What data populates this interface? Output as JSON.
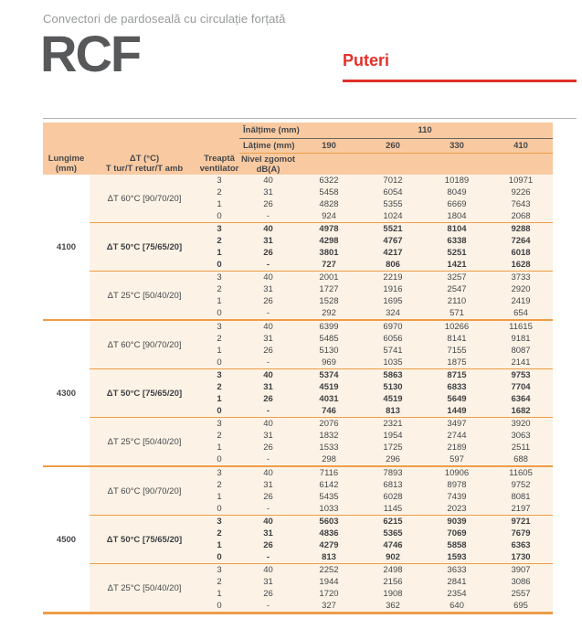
{
  "header": {
    "subtitle": "Convectori de pardoseală cu circulație forțată",
    "product": "RCF",
    "section_title": "Puteri",
    "accent_red": "#E2312A"
  },
  "colors": {
    "header_peach": "#F9CAA1",
    "body_cream": "#FCF3E6",
    "line_orange": "#EE9D47",
    "text_gray": "#45474A"
  },
  "table": {
    "inaltime_label": "Înălțime (mm)",
    "inaltime_value": "110",
    "latime_label": "Lățime (mm)",
    "widths": [
      "190",
      "260",
      "330",
      "410"
    ],
    "col_headers": [
      {
        "line1": "Lungime",
        "line2": "(mm)"
      },
      {
        "line1": "ΔT (°C)",
        "line2": "T tur/T retur/T amb"
      },
      {
        "line1": "Treaptă",
        "line2": "ventilator"
      },
      {
        "line1": "Nivel zgomot",
        "line2": "dB(A)"
      }
    ],
    "groups": [
      {
        "lungime": "4100",
        "blocks": [
          {
            "dt": "ΔT 60°C [90/70/20]",
            "bold": false,
            "rows": [
              {
                "treapta": "3",
                "zgomot": "40",
                "values": [
                  6322,
                  7012,
                  10189,
                  10971
                ]
              },
              {
                "treapta": "2",
                "zgomot": "31",
                "values": [
                  5458,
                  6054,
                  8049,
                  9226
                ]
              },
              {
                "treapta": "1",
                "zgomot": "26",
                "values": [
                  4828,
                  5355,
                  6669,
                  7643
                ]
              },
              {
                "treapta": "0",
                "zgomot": "-",
                "values": [
                  924,
                  1024,
                  1804,
                  2068
                ]
              }
            ]
          },
          {
            "dt": "ΔT 50°C [75/65/20]",
            "bold": true,
            "rows": [
              {
                "treapta": "3",
                "zgomot": "40",
                "values": [
                  4978,
                  5521,
                  8104,
                  9288
                ]
              },
              {
                "treapta": "2",
                "zgomot": "31",
                "values": [
                  4298,
                  4767,
                  6338,
                  7264
                ]
              },
              {
                "treapta": "1",
                "zgomot": "26",
                "values": [
                  3801,
                  4217,
                  5251,
                  6018
                ]
              },
              {
                "treapta": "0",
                "zgomot": "-",
                "values": [
                  727,
                  806,
                  1421,
                  1628
                ]
              }
            ]
          },
          {
            "dt": "ΔT 25°C [50/40/20]",
            "bold": false,
            "rows": [
              {
                "treapta": "3",
                "zgomot": "40",
                "values": [
                  2001,
                  2219,
                  3257,
                  3733
                ]
              },
              {
                "treapta": "2",
                "zgomot": "31",
                "values": [
                  1727,
                  1916,
                  2547,
                  2920
                ]
              },
              {
                "treapta": "1",
                "zgomot": "26",
                "values": [
                  1528,
                  1695,
                  2110,
                  2419
                ]
              },
              {
                "treapta": "0",
                "zgomot": "-",
                "values": [
                  292,
                  324,
                  571,
                  654
                ]
              }
            ]
          }
        ]
      },
      {
        "lungime": "4300",
        "blocks": [
          {
            "dt": "ΔT 60°C [90/70/20]",
            "bold": false,
            "rows": [
              {
                "treapta": "3",
                "zgomot": "40",
                "values": [
                  6399,
                  6970,
                  10266,
                  11615
                ]
              },
              {
                "treapta": "2",
                "zgomot": "31",
                "values": [
                  5485,
                  6056,
                  8141,
                  9181
                ]
              },
              {
                "treapta": "1",
                "zgomot": "26",
                "values": [
                  5130,
                  5741,
                  7155,
                  8087
                ]
              },
              {
                "treapta": "0",
                "zgomot": "-",
                "values": [
                  969,
                  1035,
                  1875,
                  2141
                ]
              }
            ]
          },
          {
            "dt": "ΔT 50°C [75/65/20]",
            "bold": true,
            "rows": [
              {
                "treapta": "3",
                "zgomot": "40",
                "values": [
                  5374,
                  5863,
                  8715,
                  9753
                ]
              },
              {
                "treapta": "2",
                "zgomot": "31",
                "values": [
                  4519,
                  5130,
                  6833,
                  7704
                ]
              },
              {
                "treapta": "1",
                "zgomot": "26",
                "values": [
                  4031,
                  4519,
                  5649,
                  6364
                ]
              },
              {
                "treapta": "0",
                "zgomot": "-",
                "values": [
                  746,
                  813,
                  1449,
                  1682
                ]
              }
            ]
          },
          {
            "dt": "ΔT 25°C [50/40/20]",
            "bold": false,
            "rows": [
              {
                "treapta": "3",
                "zgomot": "40",
                "values": [
                  2076,
                  2321,
                  3497,
                  3920
                ]
              },
              {
                "treapta": "2",
                "zgomot": "31",
                "values": [
                  1832,
                  1954,
                  2744,
                  3063
                ]
              },
              {
                "treapta": "1",
                "zgomot": "26",
                "values": [
                  1533,
                  1725,
                  2189,
                  2511
                ]
              },
              {
                "treapta": "0",
                "zgomot": "-",
                "values": [
                  298,
                  296,
                  597,
                  688
                ]
              }
            ]
          }
        ]
      },
      {
        "lungime": "4500",
        "blocks": [
          {
            "dt": "ΔT 60°C [90/70/20]",
            "bold": false,
            "rows": [
              {
                "treapta": "3",
                "zgomot": "40",
                "values": [
                  7116,
                  7893,
                  10906,
                  11605
                ]
              },
              {
                "treapta": "2",
                "zgomot": "31",
                "values": [
                  6142,
                  6813,
                  8978,
                  9752
                ]
              },
              {
                "treapta": "1",
                "zgomot": "26",
                "values": [
                  5435,
                  6028,
                  7439,
                  8081
                ]
              },
              {
                "treapta": "0",
                "zgomot": "-",
                "values": [
                  1033,
                  1145,
                  2023,
                  2197
                ]
              }
            ]
          },
          {
            "dt": "ΔT 50°C [75/65/20]",
            "bold": true,
            "rows": [
              {
                "treapta": "3",
                "zgomot": "40",
                "values": [
                  5603,
                  6215,
                  9039,
                  9721
                ]
              },
              {
                "treapta": "2",
                "zgomot": "31",
                "values": [
                  4836,
                  5365,
                  7069,
                  7679
                ]
              },
              {
                "treapta": "1",
                "zgomot": "26",
                "values": [
                  4279,
                  4746,
                  5858,
                  6363
                ]
              },
              {
                "treapta": "0",
                "zgomot": "-",
                "values": [
                  813,
                  902,
                  1593,
                  1730
                ]
              }
            ]
          },
          {
            "dt": "ΔT 25°C [50/40/20]",
            "bold": false,
            "rows": [
              {
                "treapta": "3",
                "zgomot": "40",
                "values": [
                  2252,
                  2498,
                  3633,
                  3907
                ]
              },
              {
                "treapta": "2",
                "zgomot": "31",
                "values": [
                  1944,
                  2156,
                  2841,
                  3086
                ]
              },
              {
                "treapta": "1",
                "zgomot": "26",
                "values": [
                  1720,
                  1908,
                  2354,
                  2557
                ]
              },
              {
                "treapta": "0",
                "zgomot": "-",
                "values": [
                  327,
                  362,
                  640,
                  695
                ]
              }
            ]
          }
        ]
      }
    ]
  }
}
